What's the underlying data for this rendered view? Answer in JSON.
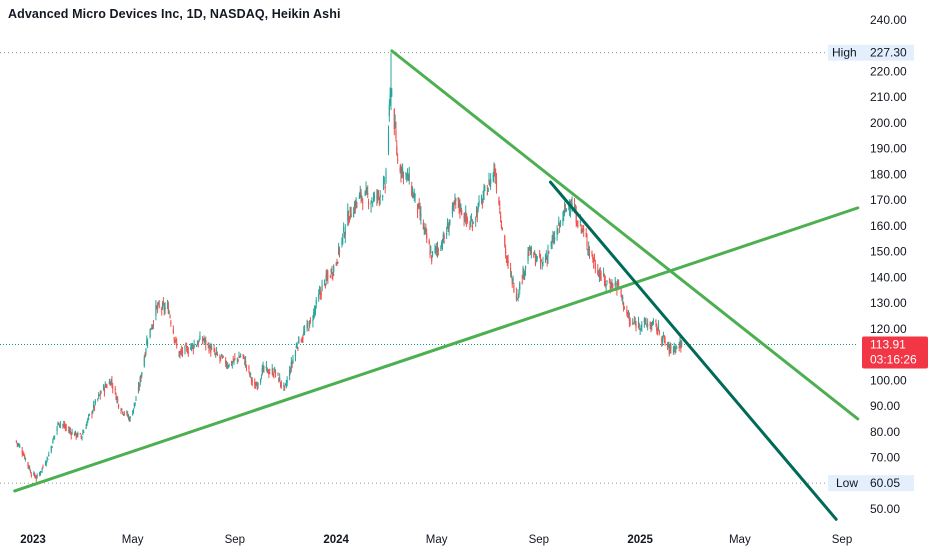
{
  "header": {
    "title": "Advanced Micro Devices Inc, 1D, NASDAQ, Heikin Ashi"
  },
  "colors": {
    "up": "#26a69a",
    "down": "#ef5350",
    "trendline": "#4caf50",
    "steep_trendline": "#006a58",
    "price_tag": "#f23645",
    "high_low_bg": "#e3effd"
  },
  "chart_data": {
    "type": "candlestick",
    "title": "Advanced Micro Devices Inc, 1D, NASDAQ, Heikin Ashi",
    "y_axis": {
      "ticks": [
        "240.00",
        "220.00",
        "210.00",
        "200.00",
        "190.00",
        "180.00",
        "170.00",
        "160.00",
        "150.00",
        "140.00",
        "130.00",
        "120.00",
        "100.00",
        "90.00",
        "80.00",
        "70.00",
        "50.00"
      ],
      "tick_values": [
        240,
        220,
        210,
        200,
        190,
        180,
        170,
        160,
        150,
        140,
        130,
        120,
        100,
        90,
        80,
        70,
        50
      ],
      "range": [
        44,
        243
      ],
      "position": "right"
    },
    "x_axis": {
      "labels": [
        {
          "text": "2023",
          "date": "2023-01-01",
          "bold": true
        },
        {
          "text": "May",
          "date": "2023-05-01",
          "bold": false
        },
        {
          "text": "Sep",
          "date": "2023-09-01",
          "bold": false
        },
        {
          "text": "2024",
          "date": "2024-01-01",
          "bold": true
        },
        {
          "text": "May",
          "date": "2024-05-01",
          "bold": false
        },
        {
          "text": "Sep",
          "date": "2024-09-01",
          "bold": false
        },
        {
          "text": "2025",
          "date": "2025-01-01",
          "bold": true
        },
        {
          "text": "May",
          "date": "2025-05-01",
          "bold": false
        },
        {
          "text": "Sep",
          "date": "2025-09-01",
          "bold": false
        }
      ]
    },
    "high": {
      "label": "High",
      "value": "227.30",
      "y": 227.3
    },
    "low": {
      "label": "Low",
      "value": "60.05",
      "y": 60.05
    },
    "last_price": {
      "value": "113.91",
      "y": 113.91,
      "countdown": "03:16:26"
    },
    "trendlines": [
      {
        "name": "upper-resistance-line",
        "from": {
          "date": "2024-03-08",
          "y": 228
        },
        "to": {
          "date": "2025-09-20",
          "y": 85
        }
      },
      {
        "name": "rising-support-line",
        "from": {
          "date": "2022-12-10",
          "y": 57
        },
        "to": {
          "date": "2025-09-20",
          "y": 167
        }
      },
      {
        "name": "steep-down-line",
        "from": {
          "date": "2024-09-15",
          "y": 177
        },
        "to": {
          "date": "2025-08-25",
          "y": 46
        }
      }
    ],
    "price_path": [
      [
        "2022-12-10",
        77
      ],
      [
        "2022-12-20",
        72
      ],
      [
        "2022-12-30",
        64
      ],
      [
        "2023-01-06",
        62
      ],
      [
        "2023-01-20",
        71
      ],
      [
        "2023-02-01",
        84
      ],
      [
        "2023-02-15",
        80
      ],
      [
        "2023-02-28",
        78
      ],
      [
        "2023-03-10",
        86
      ],
      [
        "2023-03-25",
        96
      ],
      [
        "2023-04-05",
        100
      ],
      [
        "2023-04-15",
        90
      ],
      [
        "2023-04-28",
        85
      ],
      [
        "2023-05-08",
        96
      ],
      [
        "2023-05-18",
        115
      ],
      [
        "2023-05-30",
        128
      ],
      [
        "2023-06-13",
        128
      ],
      [
        "2023-06-25",
        110
      ],
      [
        "2023-07-10",
        113
      ],
      [
        "2023-07-25",
        116
      ],
      [
        "2023-08-08",
        110
      ],
      [
        "2023-08-25",
        106
      ],
      [
        "2023-09-10",
        110
      ],
      [
        "2023-09-25",
        97
      ],
      [
        "2023-10-05",
        104
      ],
      [
        "2023-10-20",
        103
      ],
      [
        "2023-10-31",
        96
      ],
      [
        "2023-11-15",
        114
      ],
      [
        "2023-12-01",
        122
      ],
      [
        "2023-12-15",
        136
      ],
      [
        "2023-12-31",
        145
      ],
      [
        "2024-01-15",
        163
      ],
      [
        "2024-01-31",
        172
      ],
      [
        "2024-02-15",
        170
      ],
      [
        "2024-02-29",
        175
      ],
      [
        "2024-03-07",
        215
      ],
      [
        "2024-03-15",
        185
      ],
      [
        "2024-03-28",
        178
      ],
      [
        "2024-04-10",
        165
      ],
      [
        "2024-04-25",
        148
      ],
      [
        "2024-05-10",
        155
      ],
      [
        "2024-05-25",
        170
      ],
      [
        "2024-06-10",
        160
      ],
      [
        "2024-06-25",
        170
      ],
      [
        "2024-07-10",
        182
      ],
      [
        "2024-07-25",
        145
      ],
      [
        "2024-08-06",
        133
      ],
      [
        "2024-08-20",
        150
      ],
      [
        "2024-09-05",
        145
      ],
      [
        "2024-09-20",
        155
      ],
      [
        "2024-10-08",
        170
      ],
      [
        "2024-10-25",
        157
      ],
      [
        "2024-11-08",
        145
      ],
      [
        "2024-11-20",
        138
      ],
      [
        "2024-12-05",
        137
      ],
      [
        "2024-12-20",
        122
      ],
      [
        "2025-01-05",
        122
      ],
      [
        "2025-01-20",
        121
      ],
      [
        "2025-02-05",
        112
      ],
      [
        "2025-02-20",
        114
      ]
    ]
  }
}
